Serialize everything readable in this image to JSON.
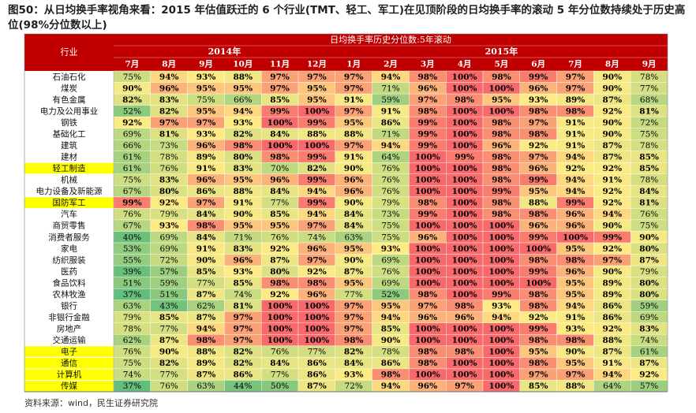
{
  "page": {
    "title": "图50：从日均换手率视角来看：2015 年估值跃迁的 6 个行业(TMT、轻工、军工)在见顶阶段的日均换手率的滚动 5 年分位数持续处于历史高位(98%分位数以上)",
    "source": "资料来源：wind，民生证券研究院"
  },
  "chart_data": {
    "type": "heatmap",
    "title": "日均换手率历史分位数:5年滚动",
    "row_header": "行业",
    "year_groups": [
      {
        "label": "2014年",
        "span": 6
      },
      {
        "label": "2015年",
        "span": 9
      }
    ],
    "months": [
      "7月",
      "8月",
      "9月",
      "10月",
      "11月",
      "12月",
      "1月",
      "2月",
      "3月",
      "4月",
      "5月",
      "6月",
      "7月",
      "8月",
      "9月"
    ],
    "value_unit": "%",
    "color_scale": {
      "low": "#63be7b",
      "mid": "#ffeb84",
      "high": "#f8696b"
    },
    "rows": [
      {
        "name": "石油石化",
        "highlight": false,
        "values": [
          75,
          94,
          93,
          88,
          97,
          97,
          97,
          94,
          98,
          100,
          98,
          99,
          97,
          90,
          78
        ]
      },
      {
        "name": "煤炭",
        "highlight": false,
        "values": [
          90,
          96,
          95,
          95,
          97,
          95,
          97,
          71,
          96,
          100,
          100,
          96,
          97,
          90,
          77
        ]
      },
      {
        "name": "有色金属",
        "highlight": false,
        "values": [
          82,
          83,
          75,
          66,
          85,
          95,
          91,
          59,
          97,
          98,
          95,
          93,
          89,
          87,
          68
        ]
      },
      {
        "name": "电力及公用事业",
        "highlight": false,
        "values": [
          52,
          82,
          95,
          94,
          99,
          100,
          97,
          91,
          98,
          100,
          100,
          98,
          98,
          92,
          81
        ]
      },
      {
        "name": "钢铁",
        "highlight": false,
        "values": [
          92,
          97,
          97,
          93,
          100,
          99,
          95,
          86,
          99,
          100,
          98,
          97,
          91,
          90,
          72
        ]
      },
      {
        "name": "基础化工",
        "highlight": false,
        "values": [
          69,
          81,
          93,
          82,
          84,
          88,
          88,
          71,
          99,
          100,
          98,
          98,
          91,
          90,
          75
        ]
      },
      {
        "name": "建筑",
        "highlight": false,
        "values": [
          66,
          73,
          96,
          98,
          100,
          100,
          97,
          94,
          99,
          100,
          96,
          92,
          91,
          87,
          78
        ]
      },
      {
        "name": "建材",
        "highlight": false,
        "values": [
          61,
          78,
          89,
          80,
          98,
          99,
          91,
          64,
          100,
          99,
          98,
          97,
          94,
          87,
          85
        ]
      },
      {
        "name": "轻工制造",
        "highlight": true,
        "values": [
          61,
          76,
          91,
          83,
          70,
          82,
          90,
          76,
          100,
          100,
          98,
          96,
          92,
          92,
          85
        ]
      },
      {
        "name": "机械",
        "highlight": false,
        "values": [
          75,
          83,
          96,
          95,
          96,
          99,
          96,
          76,
          100,
          100,
          98,
          99,
          94,
          91,
          78
        ]
      },
      {
        "name": "电力设备及新能源",
        "highlight": false,
        "values": [
          67,
          80,
          86,
          88,
          84,
          94,
          96,
          76,
          100,
          100,
          99,
          95,
          94,
          92,
          84
        ]
      },
      {
        "name": "国防军工",
        "highlight": true,
        "values": [
          99,
          92,
          97,
          91,
          77,
          99,
          90,
          79,
          98,
          100,
          98,
          88,
          99,
          92,
          81
        ]
      },
      {
        "name": "汽车",
        "highlight": false,
        "values": [
          76,
          79,
          84,
          90,
          85,
          94,
          84,
          73,
          99,
          100,
          98,
          98,
          96,
          94,
          76
        ]
      },
      {
        "name": "商贸零售",
        "highlight": false,
        "values": [
          67,
          93,
          98,
          95,
          95,
          97,
          84,
          75,
          100,
          100,
          100,
          96,
          96,
          90,
          75
        ]
      },
      {
        "name": "消费者服务",
        "highlight": false,
        "values": [
          40,
          69,
          84,
          71,
          76,
          74,
          63,
          75,
          96,
          100,
          100,
          99,
          100,
          99,
          90
        ]
      },
      {
        "name": "家电",
        "highlight": false,
        "values": [
          53,
          69,
          91,
          83,
          92,
          96,
          95,
          93,
          100,
          100,
          100,
          100,
          95,
          92,
          80
        ]
      },
      {
        "name": "纺织服装",
        "highlight": false,
        "values": [
          55,
          72,
          90,
          96,
          87,
          97,
          90,
          69,
          100,
          100,
          100,
          98,
          98,
          97,
          87
        ]
      },
      {
        "name": "医药",
        "highlight": false,
        "values": [
          39,
          57,
          85,
          93,
          80,
          92,
          87,
          76,
          100,
          100,
          100,
          99,
          96,
          90,
          79
        ]
      },
      {
        "name": "食品饮料",
        "highlight": false,
        "values": [
          51,
          59,
          77,
          85,
          98,
          98,
          95,
          69,
          100,
          100,
          100,
          100,
          95,
          89,
          80
        ]
      },
      {
        "name": "农林牧渔",
        "highlight": false,
        "values": [
          37,
          51,
          87,
          74,
          92,
          96,
          77,
          52,
          98,
          100,
          99,
          98,
          95,
          89,
          80
        ]
      },
      {
        "name": "银行",
        "highlight": false,
        "values": [
          63,
          43,
          62,
          81,
          100,
          100,
          97,
          95,
          97,
          98,
          93,
          98,
          94,
          86,
          59
        ]
      },
      {
        "name": "非银行金融",
        "highlight": false,
        "values": [
          79,
          85,
          87,
          97,
          100,
          100,
          97,
          94,
          96,
          96,
          94,
          92,
          91,
          86,
          69
        ]
      },
      {
        "name": "房地产",
        "highlight": false,
        "values": [
          78,
          77,
          94,
          97,
          100,
          100,
          97,
          85,
          100,
          100,
          100,
          99,
          93,
          92,
          83
        ]
      },
      {
        "name": "交通运输",
        "highlight": false,
        "values": [
          62,
          87,
          98,
          97,
          100,
          100,
          98,
          90,
          100,
          100,
          100,
          98,
          98,
          88,
          74
        ]
      },
      {
        "name": "电子",
        "highlight": true,
        "values": [
          76,
          90,
          88,
          82,
          76,
          77,
          82,
          78,
          98,
          98,
          100,
          95,
          90,
          87,
          61
        ]
      },
      {
        "name": "通信",
        "highlight": true,
        "values": [
          75,
          82,
          89,
          82,
          84,
          86,
          84,
          86,
          98,
          100,
          100,
          98,
          95,
          91,
          87
        ]
      },
      {
        "name": "计算机",
        "highlight": true,
        "values": [
          74,
          77,
          87,
          86,
          77,
          86,
          93,
          98,
          100,
          100,
          100,
          97,
          97,
          94,
          92
        ]
      },
      {
        "name": "传媒",
        "highlight": true,
        "values": [
          37,
          76,
          63,
          44,
          50,
          87,
          72,
          94,
          96,
          97,
          100,
          85,
          88,
          64,
          57
        ]
      }
    ]
  }
}
